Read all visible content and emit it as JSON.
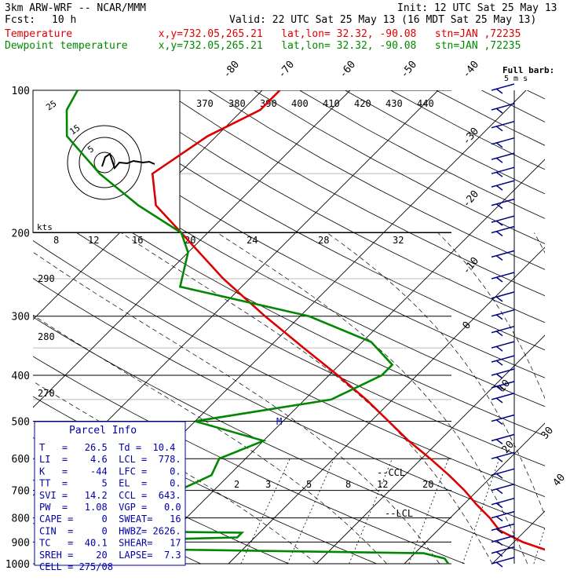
{
  "header": {
    "model": "3km ARW-WRF -- NCAR/MMM",
    "init": "Init: 12 UTC Sat 25 May 13",
    "fcst_label": "Fcst:",
    "fcst_value": "10 h",
    "valid": "Valid: 22 UTC Sat 25 May 13 (16 MDT Sat 25 May 13)",
    "temp_line": "Temperature              x,y=732.05,265.21   lat,lon= 32.32, -90.08   stn=JAN ,72235",
    "dew_line": "Dewpoint temperature     x,y=732.05,265.21   lat,lon= 32.32, -90.08   stn=JAN ,72235"
  },
  "colors": {
    "temperature": "#dd0000",
    "dewpoint": "#008800",
    "parcel_box": "#0000aa",
    "wind": "#000088"
  },
  "chart_data": {
    "type": "line",
    "subtype": "skew-T log-P",
    "y_axis": {
      "label": "",
      "scale": "log",
      "ticks": [
        "100",
        "200",
        "300",
        "400",
        "500",
        "600",
        "700",
        "800",
        "900",
        "1000"
      ]
    },
    "isotherm_labels_top": [
      "-80",
      "-70",
      "-60",
      "-50",
      "-40"
    ],
    "isotherm_labels_right": [
      "-30",
      "-20",
      "-10",
      "0",
      "10",
      "20",
      "30",
      "40"
    ],
    "theta_e_labels": [
      "370",
      "380",
      "390",
      "400",
      "410",
      "420",
      "430",
      "440"
    ],
    "theta_labels": [
      "290",
      "280",
      "270"
    ],
    "mixing_ratio_labels": [
      "2",
      "3",
      "5",
      "8",
      "12",
      "20"
    ],
    "hodograph": {
      "units": "kts",
      "speed_labels": [
        "8",
        "12",
        "16",
        "20",
        "24",
        "28",
        "32"
      ],
      "ring_labels": [
        "5",
        "15",
        "25"
      ]
    },
    "series": [
      {
        "name": "Temperature",
        "points": [
          [
            1000,
            29
          ],
          [
            950,
            26
          ],
          [
            900,
            21
          ],
          [
            850,
            17
          ],
          [
            800,
            14.5
          ],
          [
            750,
            11.5
          ],
          [
            700,
            8.5
          ],
          [
            650,
            5
          ],
          [
            600,
            1
          ],
          [
            550,
            -3.5
          ],
          [
            500,
            -8
          ],
          [
            450,
            -13
          ],
          [
            400,
            -19
          ],
          [
            350,
            -26
          ],
          [
            300,
            -34
          ],
          [
            250,
            -43
          ],
          [
            200,
            -53
          ],
          [
            175,
            -59
          ],
          [
            150,
            -63
          ],
          [
            125,
            -61
          ],
          [
            110,
            -58
          ],
          [
            100,
            -58
          ]
        ]
      },
      {
        "name": "Dewpoint temperature",
        "points": [
          [
            1000,
            15
          ],
          [
            975,
            14
          ],
          [
            950,
            11
          ],
          [
            925,
            -33
          ],
          [
            900,
            -32
          ],
          [
            880,
            -12
          ],
          [
            860,
            -12
          ],
          [
            850,
            -35
          ],
          [
            820,
            -35
          ],
          [
            780,
            -25
          ],
          [
            700,
            -24
          ],
          [
            650,
            -22
          ],
          [
            600,
            -23
          ],
          [
            550,
            -20
          ],
          [
            500,
            -30
          ],
          [
            450,
            -17
          ],
          [
            400,
            -14
          ],
          [
            380,
            -14
          ],
          [
            340,
            -19
          ],
          [
            300,
            -29
          ],
          [
            260,
            -47
          ],
          [
            220,
            -50
          ],
          [
            200,
            -53
          ],
          [
            175,
            -61
          ],
          [
            150,
            -69
          ],
          [
            125,
            -77
          ],
          [
            110,
            -80
          ],
          [
            100,
            -81
          ]
        ]
      }
    ],
    "wind_label": "Full barb:",
    "wind_sublabel": "5 m s",
    "wind_levels": [
      100,
      110,
      120,
      130,
      140,
      150,
      160,
      175,
      190,
      200,
      225,
      250,
      275,
      300,
      325,
      350,
      375,
      400,
      425,
      450,
      500,
      550,
      600,
      650,
      700,
      750,
      800,
      850,
      900,
      950,
      1000
    ],
    "markers": {
      "lcl": "LCL",
      "ccl": "CCL",
      "m": "M"
    }
  },
  "parcel_info": {
    "title": "Parcel Info",
    "rows": [
      "T   =   26.5  Td =  10.4",
      "LI  =    4.6  LCL =  778.",
      "K   =    -44  LFC =    0.",
      "TT  =      5  EL  =    0.",
      "SVI =   14.2  CCL =  643.",
      "PW  =   1.08  VGP =   0.0",
      "CAPE =     0  SWEAT=   16",
      "CIN  =     0  HWBZ= 2626.",
      "TC   =  40.1  SHEAR=   17",
      "SREH =    20  LAPSE=  7.3",
      "CELL = 275/08"
    ]
  }
}
